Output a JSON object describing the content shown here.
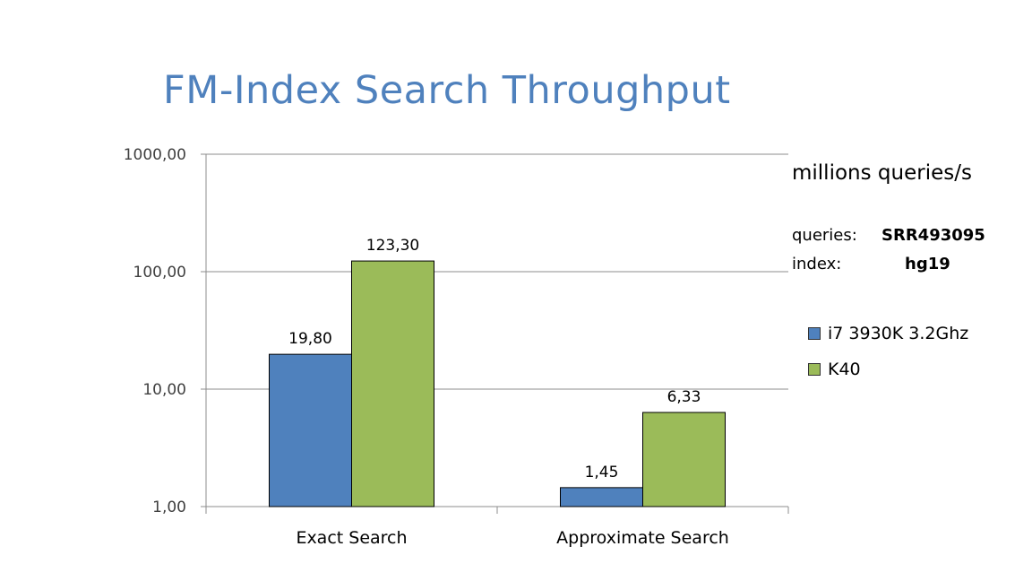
{
  "slide": {
    "title": "FM-Index Search Throughput"
  },
  "annotations": {
    "unit": "millions queries/s",
    "queries_label": "queries:",
    "queries_value": "SRR493095",
    "index_label": "index:",
    "index_value": "hg19"
  },
  "chart_data": {
    "type": "bar",
    "categories": [
      "Exact Search",
      "Approximate Search"
    ],
    "series": [
      {
        "name": "i7 3930K 3.2Ghz",
        "values": [
          19.8,
          1.45
        ],
        "labels": [
          "19,80",
          "1,45"
        ],
        "color": "#4f81bd"
      },
      {
        "name": "K40",
        "values": [
          123.3,
          6.33
        ],
        "labels": [
          "123,30",
          "6,33"
        ],
        "color": "#9bbb59"
      }
    ],
    "y_scale": "log",
    "ylim": [
      1,
      1000
    ],
    "y_ticks": [
      1,
      10,
      100,
      1000
    ],
    "y_tick_labels": [
      "1,00",
      "10,00",
      "100,00",
      "1000,00"
    ],
    "grid": true,
    "legend_position": "right"
  }
}
